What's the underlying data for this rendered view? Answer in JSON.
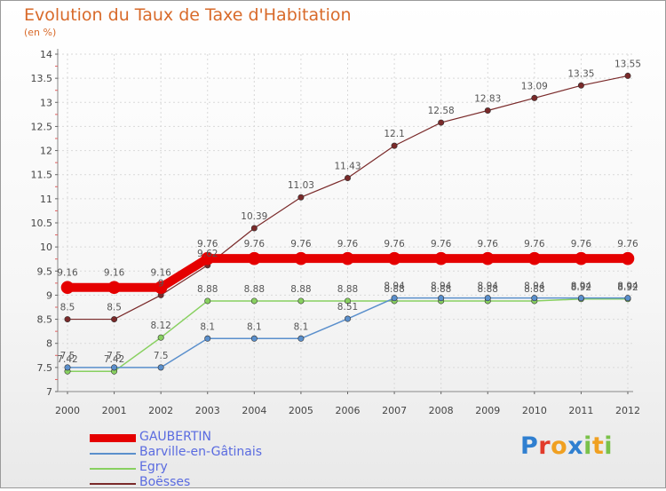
{
  "title": "Evolution du Taux de Taxe d'Habitation",
  "subtitle": "(en %)",
  "logo": {
    "text": "Proxiti",
    "letter_colors": [
      "#2f7fd0",
      "#e23b2b",
      "#f0a021",
      "#2f7fd0",
      "#7ac14a",
      "#f0a021",
      "#7ac14a"
    ]
  },
  "chart_data": {
    "type": "line",
    "x": [
      "2000",
      "2001",
      "2002",
      "2003",
      "2004",
      "2005",
      "2006",
      "2007",
      "2008",
      "2009",
      "2010",
      "2011",
      "2012"
    ],
    "ylim": [
      7,
      14
    ],
    "yticks": [
      "7",
      "7.5",
      "8",
      "8.5",
      "9",
      "9.5",
      "10",
      "10.5",
      "11",
      "11.5",
      "12",
      "12.5",
      "13",
      "13.5",
      "14"
    ],
    "grid": true,
    "legend_position": "bottom-left",
    "series": [
      {
        "name": "GAUBERTIN",
        "color": "#e50000",
        "width": 10,
        "label_color": "#555555",
        "label_dy": -13,
        "values": [
          9.16,
          9.16,
          9.16,
          9.76,
          9.76,
          9.76,
          9.76,
          9.76,
          9.76,
          9.76,
          9.76,
          9.76,
          9.76
        ],
        "labels": [
          "9.16",
          "9.16",
          "9.16",
          "9.76",
          "9.76",
          "9.76",
          "9.76",
          "9.76",
          "9.76",
          "9.76",
          "9.76",
          "9.76",
          "9.76"
        ]
      },
      {
        "name": "Barville-en-Gâtinais",
        "color": "#5a8fcc",
        "width": 1.5,
        "label_color": "#555555",
        "label_dy": -10,
        "values": [
          7.5,
          7.5,
          7.5,
          8.1,
          8.1,
          8.1,
          8.51,
          8.94,
          8.94,
          8.94,
          8.94,
          8.94,
          8.94
        ],
        "labels": [
          "7.5",
          "7.5",
          "7.5",
          "8.1",
          "8.1",
          "8.1",
          "8.51",
          "8.94",
          "8.94",
          "8.94",
          "8.94",
          "8.94",
          "8.94"
        ]
      },
      {
        "name": "Egry",
        "color": "#88d060",
        "width": 1.5,
        "label_color": "#555555",
        "label_dy": -10,
        "values": [
          7.42,
          7.42,
          8.12,
          8.88,
          8.88,
          8.88,
          8.88,
          8.88,
          8.88,
          8.88,
          8.88,
          8.92,
          8.92
        ],
        "labels": [
          "7.42",
          "7.42",
          "8.12",
          "8.88",
          "8.88",
          "8.88",
          "8.88",
          "8.88",
          "8.88",
          "8.88",
          "8.88",
          "8.92",
          "8.92"
        ]
      },
      {
        "name": "Boësses",
        "color": "#7a2a2a",
        "width": 1.2,
        "label_color": "#555555",
        "label_dy": -10,
        "values": [
          8.5,
          8.5,
          9,
          9.62,
          10.39,
          11.03,
          11.43,
          12.1,
          12.58,
          12.83,
          13.09,
          13.35,
          13.55
        ],
        "labels": [
          "8.5",
          "8.5",
          "9",
          "9.62",
          "10.39",
          "11.03",
          "11.43",
          "12.1",
          "12.58",
          "12.83",
          "13.09",
          "13.35",
          "13.55"
        ]
      }
    ],
    "legend_text_color": "#5a6be0"
  }
}
